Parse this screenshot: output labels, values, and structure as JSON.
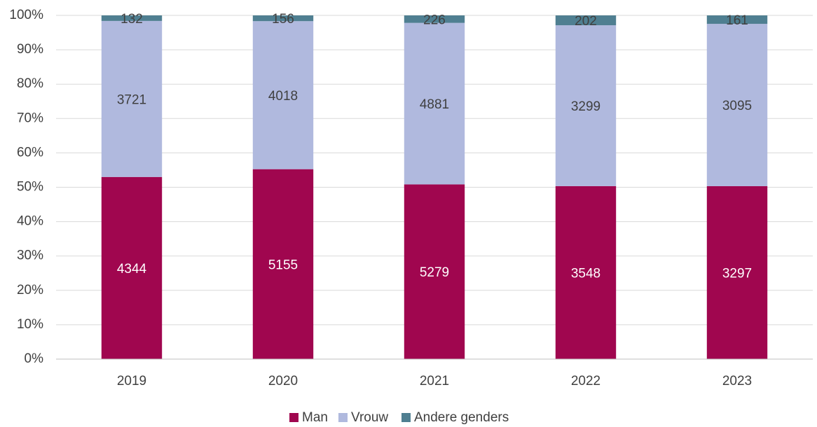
{
  "chart_data": {
    "type": "bar",
    "stacked": "percent",
    "categories": [
      "2019",
      "2020",
      "2021",
      "2022",
      "2023"
    ],
    "series": [
      {
        "name": "Man",
        "color": "#a0064f",
        "values": [
          4344,
          5155,
          5279,
          3548,
          3297
        ]
      },
      {
        "name": "Vrouw",
        "color": "#b0b9de",
        "values": [
          3721,
          4018,
          4881,
          3299,
          3095
        ]
      },
      {
        "name": "Andere genders",
        "color": "#4f7f91",
        "values": [
          132,
          156,
          226,
          202,
          161
        ]
      }
    ],
    "ylim": [
      0,
      100
    ],
    "yticks": [
      {
        "value": 0,
        "label": "0%"
      },
      {
        "value": 10,
        "label": "10%"
      },
      {
        "value": 20,
        "label": "20%"
      },
      {
        "value": 30,
        "label": "30%"
      },
      {
        "value": 40,
        "label": "40%"
      },
      {
        "value": 50,
        "label": "50%"
      },
      {
        "value": 60,
        "label": "60%"
      },
      {
        "value": 70,
        "label": "70%"
      },
      {
        "value": 80,
        "label": "80%"
      },
      {
        "value": 90,
        "label": "90%"
      },
      {
        "value": 100,
        "label": "100%"
      }
    ],
    "grid": true,
    "legend": "bottom"
  }
}
